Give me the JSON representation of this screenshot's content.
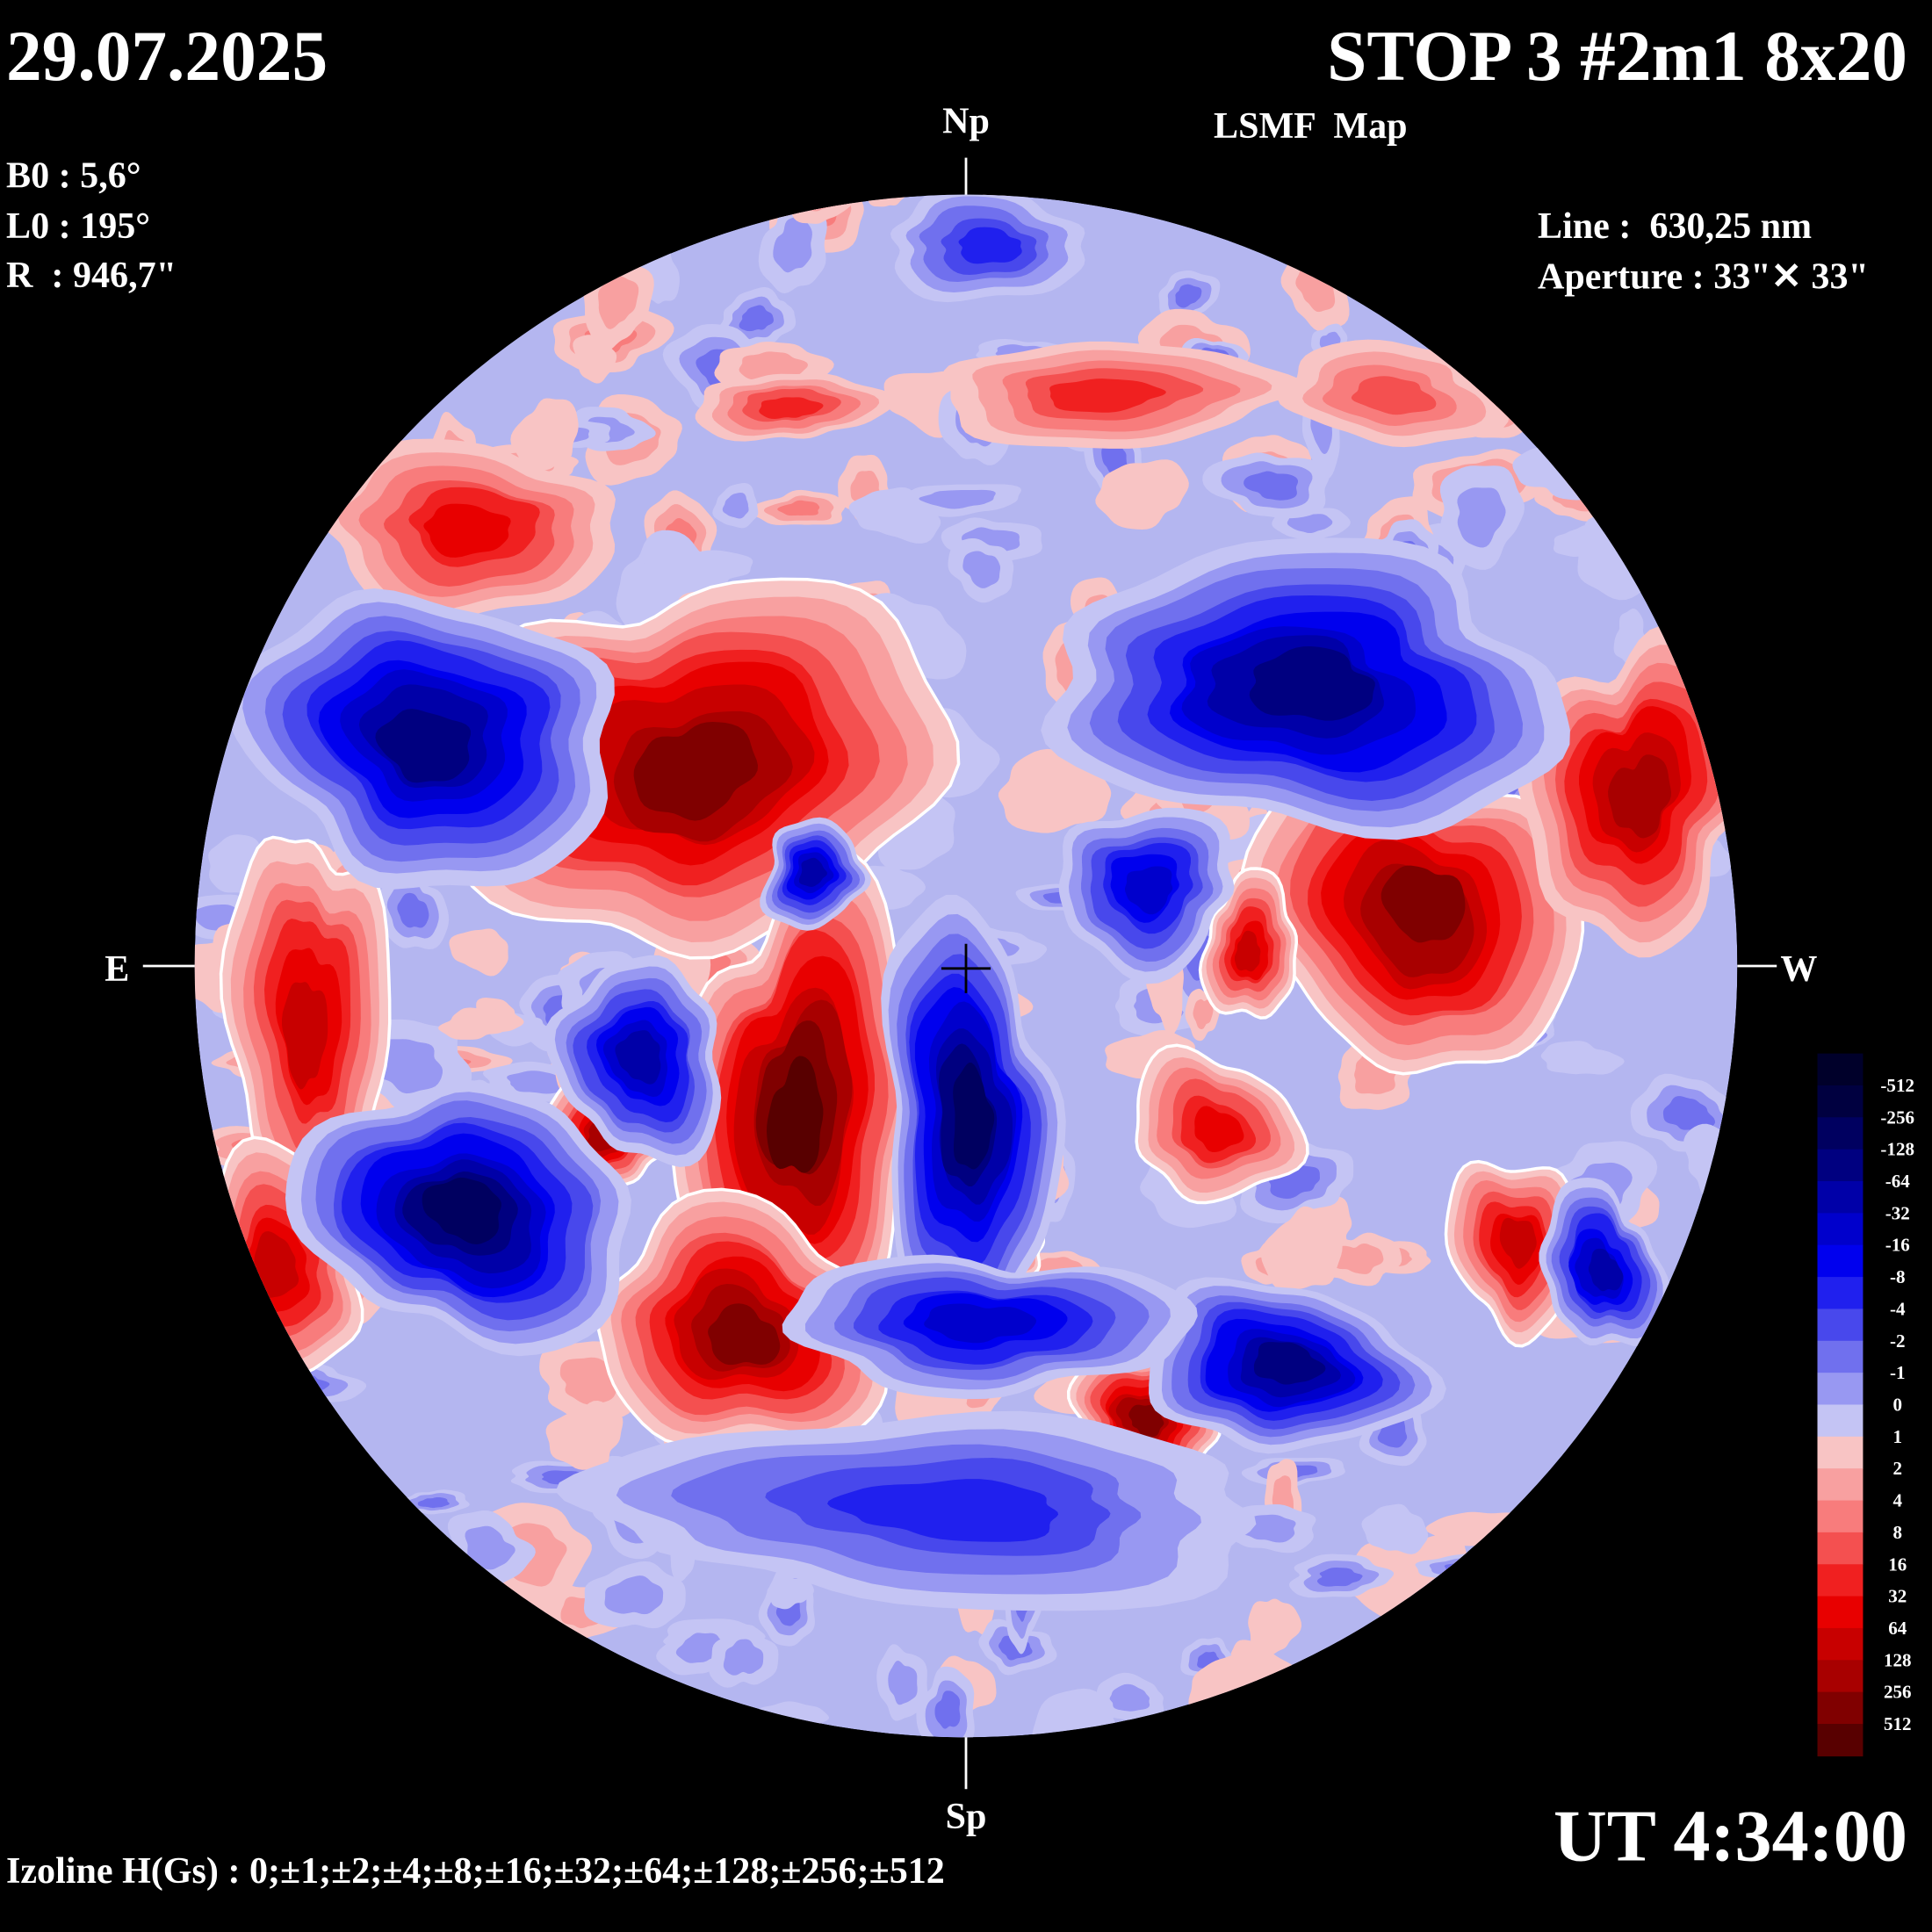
{
  "header": {
    "date": "29.07.2025",
    "title": "STOP 3 #2m1 8x20",
    "subtitle": "LSMF  Map"
  },
  "parameters": [
    "B0 : 5,6°",
    "L0 : 195°",
    "R  : 946,7\""
  ],
  "instrument": [
    "Line :  630,25 nm",
    "Aperture : 33\"✕ 33\""
  ],
  "directions": {
    "north": "Np",
    "south": "Sp",
    "east": "E",
    "west": "W"
  },
  "time": "UT 4:34:00",
  "izolines": "Izoline H(Gs) : 0;±1;±2;±4;±8;±16;±32;±64;±128;±256;±512",
  "colorbar": {
    "levels": [
      -512,
      -256,
      -128,
      -64,
      -32,
      -16,
      -8,
      -4,
      -2,
      -1,
      0,
      1,
      2,
      4,
      8,
      16,
      32,
      64,
      128,
      256,
      512
    ],
    "colors": [
      "#00002a",
      "#000040",
      "#000060",
      "#000080",
      "#0000a8",
      "#0000cc",
      "#0000ee",
      "#2020ee",
      "#4848ec",
      "#7070ee",
      "#9898f2",
      "#c4c4f4",
      "#f8c4c4",
      "#f8a0a0",
      "#f87c7c",
      "#f45050",
      "#f02020",
      "#e80000",
      "#c80000",
      "#a80000",
      "#800000",
      "#580000"
    ]
  }
}
